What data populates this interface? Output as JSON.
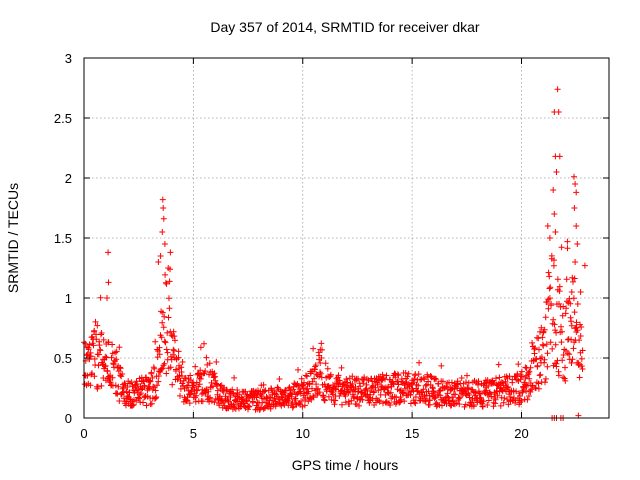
{
  "chart_data": {
    "type": "scatter",
    "title": "Day 357 of 2014, SRMTID for receiver dkar",
    "xlabel": "GPS time / hours",
    "ylabel": "SRMTID / TECUs",
    "xlim": [
      0,
      24
    ],
    "ylim": [
      0,
      3
    ],
    "xticks": [
      0,
      5,
      10,
      15,
      20
    ],
    "yticks": [
      0,
      0.5,
      1,
      1.5,
      2,
      2.5,
      3
    ],
    "xtick_labels": [
      "0",
      "5",
      "10",
      "15",
      "20"
    ],
    "ytick_labels": [
      "0",
      "0.5",
      "1",
      "1.5",
      "2",
      "2.5",
      "3"
    ],
    "grid": true,
    "marker": "+",
    "color": "#ff0000",
    "profile": [
      [
        0.0,
        0.42
      ],
      [
        0.3,
        0.45
      ],
      [
        0.6,
        0.5
      ],
      [
        0.9,
        0.45
      ],
      [
        1.2,
        0.42
      ],
      [
        1.5,
        0.35
      ],
      [
        1.8,
        0.22
      ],
      [
        2.2,
        0.2
      ],
      [
        2.6,
        0.22
      ],
      [
        3.0,
        0.22
      ],
      [
        3.3,
        0.35
      ],
      [
        3.6,
        0.7
      ],
      [
        3.9,
        0.75
      ],
      [
        4.2,
        0.4
      ],
      [
        4.6,
        0.28
      ],
      [
        5.0,
        0.2
      ],
      [
        5.4,
        0.28
      ],
      [
        5.8,
        0.3
      ],
      [
        6.2,
        0.18
      ],
      [
        7.0,
        0.15
      ],
      [
        8.0,
        0.15
      ],
      [
        9.0,
        0.17
      ],
      [
        10.0,
        0.2
      ],
      [
        10.5,
        0.3
      ],
      [
        10.8,
        0.38
      ],
      [
        11.2,
        0.25
      ],
      [
        12.0,
        0.22
      ],
      [
        13.0,
        0.22
      ],
      [
        14.0,
        0.24
      ],
      [
        15.0,
        0.25
      ],
      [
        15.5,
        0.24
      ],
      [
        16.0,
        0.22
      ],
      [
        16.5,
        0.2
      ],
      [
        17.0,
        0.2
      ],
      [
        18.0,
        0.2
      ],
      [
        19.0,
        0.22
      ],
      [
        20.0,
        0.25
      ],
      [
        20.5,
        0.35
      ],
      [
        21.0,
        0.55
      ],
      [
        21.4,
        0.9
      ],
      [
        21.6,
        0.8
      ],
      [
        22.0,
        0.6
      ],
      [
        22.4,
        0.8
      ],
      [
        22.7,
        0.55
      ],
      [
        22.8,
        0.45
      ]
    ],
    "peaks": [
      {
        "x": 1.1,
        "y": 1.38
      },
      {
        "x": 1.12,
        "y": 1.13
      },
      {
        "x": 1.05,
        "y": 1.0
      },
      {
        "x": 3.6,
        "y": 1.82
      },
      {
        "x": 3.62,
        "y": 1.75
      },
      {
        "x": 3.65,
        "y": 1.66
      },
      {
        "x": 3.58,
        "y": 1.55
      },
      {
        "x": 3.7,
        "y": 1.45
      },
      {
        "x": 3.5,
        "y": 1.35
      },
      {
        "x": 3.95,
        "y": 1.38
      },
      {
        "x": 3.85,
        "y": 1.25
      },
      {
        "x": 3.4,
        "y": 1.3
      },
      {
        "x": 10.8,
        "y": 0.57
      },
      {
        "x": 10.75,
        "y": 0.52
      },
      {
        "x": 21.2,
        "y": 1.6
      },
      {
        "x": 21.3,
        "y": 1.5
      },
      {
        "x": 21.5,
        "y": 2.55
      },
      {
        "x": 21.55,
        "y": 2.18
      },
      {
        "x": 21.6,
        "y": 2.05
      },
      {
        "x": 21.45,
        "y": 1.9
      },
      {
        "x": 21.7,
        "y": 2.55
      },
      {
        "x": 21.75,
        "y": 2.18
      },
      {
        "x": 21.65,
        "y": 2.74
      },
      {
        "x": 21.5,
        "y": 1.7
      },
      {
        "x": 21.55,
        "y": 1.55
      },
      {
        "x": 22.4,
        "y": 2.01
      },
      {
        "x": 22.45,
        "y": 1.95
      },
      {
        "x": 22.5,
        "y": 1.88
      },
      {
        "x": 22.42,
        "y": 1.75
      },
      {
        "x": 22.5,
        "y": 1.6
      },
      {
        "x": 22.1,
        "y": 1.47
      },
      {
        "x": 22.55,
        "y": 1.45
      },
      {
        "x": 22.45,
        "y": 1.3
      },
      {
        "x": 22.9,
        "y": 1.27
      },
      {
        "x": 22.3,
        "y": 1.05
      },
      {
        "x": 22.7,
        "y": 1.05
      }
    ],
    "zeros": [
      {
        "x": 21.4,
        "y": 0.0
      },
      {
        "x": 21.5,
        "y": 0.0
      },
      {
        "x": 21.6,
        "y": 0.0
      },
      {
        "x": 21.8,
        "y": 0.0
      },
      {
        "x": 21.9,
        "y": 0.0
      },
      {
        "x": 22.6,
        "y": 0.02
      }
    ]
  }
}
